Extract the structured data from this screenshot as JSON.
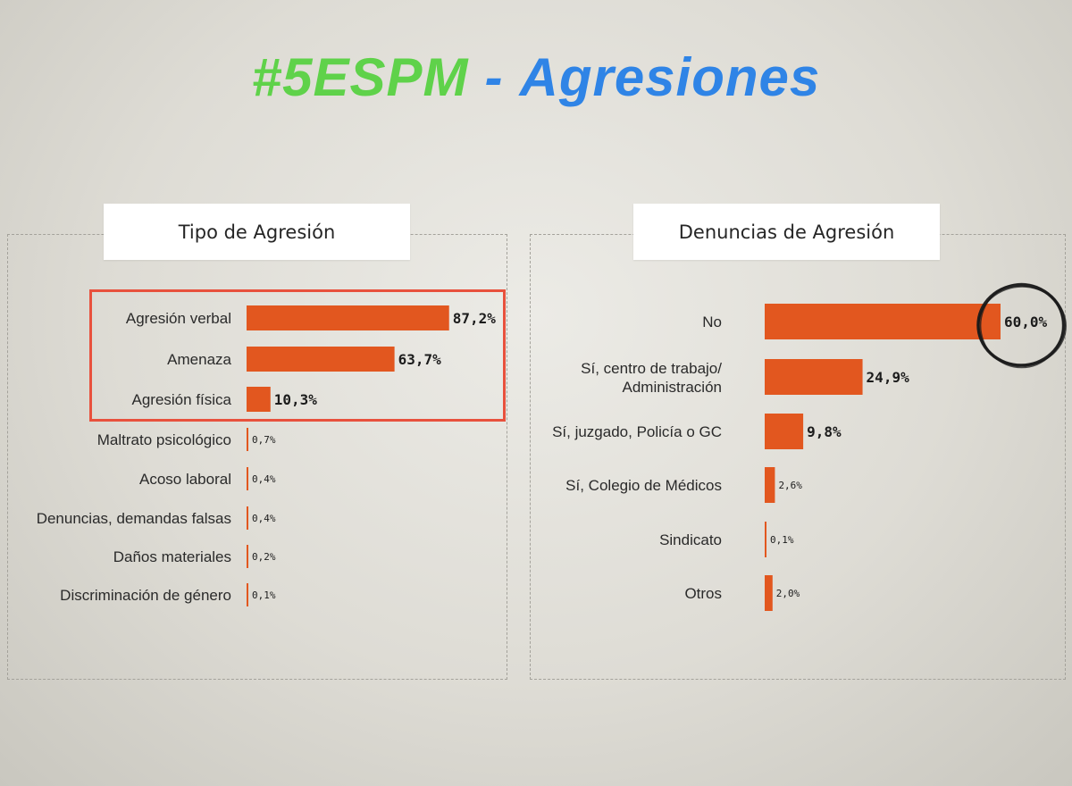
{
  "title": {
    "part1": "#5ESPM",
    "separator": "-",
    "part2": "Agresiones"
  },
  "colors": {
    "bar": "#e2571f",
    "highlight": "#e8513d",
    "title_green": "#5fd24a",
    "title_blue": "#2f84e6"
  },
  "chart_data": [
    {
      "type": "bar",
      "orientation": "horizontal",
      "title": "Tipo de Agresión",
      "categories": [
        "Agresión verbal",
        "Amenaza",
        "Agresión física",
        "Maltrato psicológico",
        "Acoso laboral",
        "Denuncias, demandas falsas",
        "Daños materiales",
        "Discriminación de género"
      ],
      "values": [
        87.2,
        63.7,
        10.3,
        0.7,
        0.4,
        0.4,
        0.2,
        0.1
      ],
      "value_labels": [
        "87,2%",
        "63,7%",
        "10,3%",
        "0,7%",
        "0,4%",
        "0,4%",
        "0,2%",
        "0,1%"
      ],
      "unit": "%",
      "xlim": [
        0,
        100
      ],
      "highlighted": [
        "Agresión verbal",
        "Amenaza",
        "Agresión física"
      ]
    },
    {
      "type": "bar",
      "orientation": "horizontal",
      "title": "Denuncias de Agresión",
      "categories": [
        "No",
        "Sí, centro de trabajo/ Administración",
        "Sí, juzgado, Policía o GC",
        "Sí, Colegio de Médicos",
        "Sindicato",
        "Otros"
      ],
      "values": [
        60.0,
        24.9,
        9.8,
        2.6,
        0.1,
        2.0
      ],
      "value_labels": [
        "60,0%",
        "24,9%",
        "9,8%",
        "2,6%",
        "0,1%",
        "2,0%"
      ],
      "unit": "%",
      "xlim": [
        0,
        100
      ],
      "circled": [
        "No"
      ]
    }
  ]
}
